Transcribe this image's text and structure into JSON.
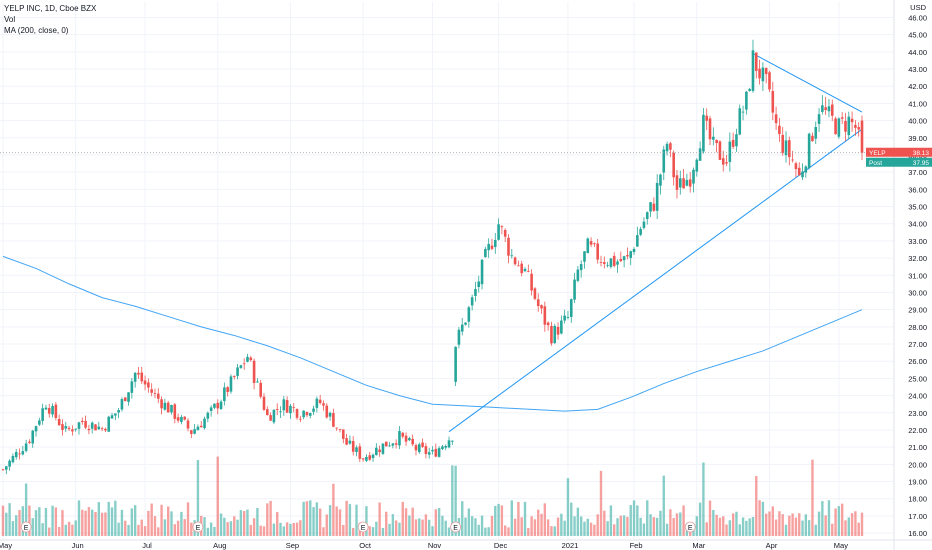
{
  "header": {
    "title": "YELP INC, 1D, Cboe BZX",
    "line2": "Vol",
    "line3": "MA (200, close, 0)",
    "currency_top": "USD"
  },
  "chart_data": {
    "type": "candlestick",
    "symbol": "YELP INC",
    "interval": "1D",
    "exchange": "Cboe BZX",
    "currency": "USD",
    "y_axis": {
      "range": [
        15.6,
        46.9
      ],
      "ticks": [
        "16.00",
        "17.00",
        "18.00",
        "19.00",
        "20.00",
        "21.00",
        "22.00",
        "23.00",
        "24.00",
        "25.00",
        "26.00",
        "27.00",
        "28.00",
        "29.00",
        "30.00",
        "31.00",
        "32.00",
        "33.00",
        "34.00",
        "35.00",
        "36.00",
        "37.00",
        "38.00",
        "39.00",
        "40.00",
        "41.00",
        "42.00",
        "43.00",
        "44.00",
        "45.00",
        "46.00"
      ]
    },
    "x_axis": {
      "labels": [
        "May",
        "Jun",
        "Jul",
        "Aug",
        "Sep",
        "Oct",
        "Nov",
        "Dec",
        "2021",
        "Feb",
        "Mar",
        "Apr",
        "May"
      ]
    },
    "earnings_markers": [
      "E",
      "E",
      "E",
      "E",
      "E"
    ],
    "last_price": {
      "label": "YELP",
      "value": "38.13",
      "color": "#ef5350"
    },
    "post_price": {
      "label": "Post",
      "value": "37.95",
      "color": "#26a69a"
    },
    "price_anchors": [
      [
        0,
        19.7
      ],
      [
        8,
        21.5
      ],
      [
        13,
        23.6
      ],
      [
        19,
        21.9
      ],
      [
        24,
        22.5
      ],
      [
        30,
        22.1
      ],
      [
        35,
        23.2
      ],
      [
        40,
        25.3
      ],
      [
        46,
        24.0
      ],
      [
        52,
        22.9
      ],
      [
        57,
        21.9
      ],
      [
        63,
        23.0
      ],
      [
        68,
        24.4
      ],
      [
        74,
        26.3
      ],
      [
        80,
        22.8
      ],
      [
        85,
        23.5
      ],
      [
        90,
        23.0
      ],
      [
        96,
        23.6
      ],
      [
        100,
        22.5
      ],
      [
        104,
        21.2
      ],
      [
        109,
        20.4
      ],
      [
        115,
        21.1
      ],
      [
        120,
        21.6
      ],
      [
        125,
        20.9
      ],
      [
        130,
        20.6
      ],
      [
        136,
        21.7
      ],
      [
        137,
        27.0
      ],
      [
        142,
        29.5
      ],
      [
        146,
        32.0
      ],
      [
        150,
        34.0
      ],
      [
        154,
        32.1
      ],
      [
        158,
        31.2
      ],
      [
        162,
        29.2
      ],
      [
        166,
        27.5
      ],
      [
        171,
        28.5
      ],
      [
        174,
        31.2
      ],
      [
        177,
        32.6
      ],
      [
        181,
        32.0
      ],
      [
        185,
        31.8
      ],
      [
        189,
        31.9
      ],
      [
        193,
        33.8
      ],
      [
        197,
        35.2
      ],
      [
        201,
        38.7
      ],
      [
        204,
        36.0
      ],
      [
        208,
        36.8
      ],
      [
        212,
        39.8
      ],
      [
        215,
        38.4
      ],
      [
        219,
        37.7
      ],
      [
        222,
        39.7
      ],
      [
        225,
        41.1
      ],
      [
        227,
        43.6
      ],
      [
        231,
        42.0
      ],
      [
        235,
        38.9
      ],
      [
        239,
        37.7
      ],
      [
        241,
        36.7
      ],
      [
        244,
        38.6
      ],
      [
        247,
        40.8
      ],
      [
        250,
        40.2
      ],
      [
        253,
        39.6
      ],
      [
        256,
        40.0
      ],
      [
        258,
        39.6
      ],
      [
        260,
        38.1
      ]
    ],
    "volume": {
      "ma_line": false,
      "colors": {
        "up": "#26a69a",
        "down": "#ef5350"
      }
    },
    "ma200": {
      "name": "MA (200, close, 0)",
      "color": "#42a5f5",
      "points": [
        [
          0,
          32.1
        ],
        [
          10,
          31.4
        ],
        [
          20,
          30.5
        ],
        [
          30,
          29.7
        ],
        [
          40,
          29.2
        ],
        [
          50,
          28.6
        ],
        [
          60,
          28.0
        ],
        [
          70,
          27.5
        ],
        [
          80,
          26.9
        ],
        [
          90,
          26.2
        ],
        [
          100,
          25.4
        ],
        [
          110,
          24.6
        ],
        [
          120,
          24.0
        ],
        [
          130,
          23.5
        ],
        [
          140,
          23.4
        ],
        [
          150,
          23.3
        ],
        [
          160,
          23.2
        ],
        [
          170,
          23.1
        ],
        [
          180,
          23.2
        ],
        [
          190,
          23.9
        ],
        [
          200,
          24.7
        ],
        [
          210,
          25.4
        ],
        [
          220,
          26.0
        ],
        [
          230,
          26.6
        ],
        [
          240,
          27.4
        ],
        [
          250,
          28.2
        ],
        [
          260,
          29.0
        ]
      ]
    },
    "trendlines": [
      {
        "from": [
          135,
          21.9
        ],
        "to": [
          260,
          39.5
        ],
        "color": "#2196f3"
      },
      {
        "from": [
          227,
          43.9
        ],
        "to": [
          260,
          40.5
        ],
        "color": "#2196f3"
      }
    ],
    "colors": {
      "up": "#26a69a",
      "down": "#ef5350",
      "grid": "#f0f3fa",
      "axis_text": "#131722"
    }
  }
}
